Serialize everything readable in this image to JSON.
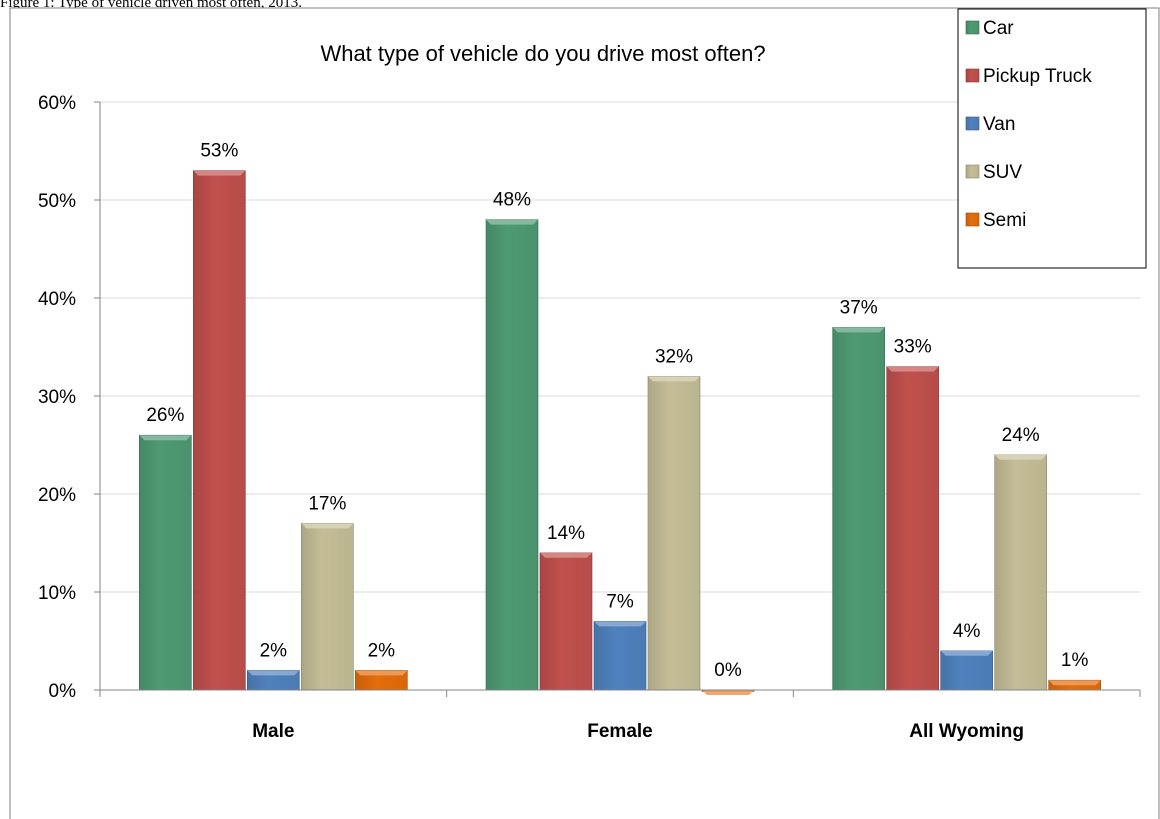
{
  "caption": "Figure 1: Type of vehicle driven most often, 2013.",
  "chart_data": {
    "type": "bar",
    "title": "What type of vehicle do you drive most often?",
    "categories": [
      "Male",
      "Female",
      "All Wyoming"
    ],
    "series": [
      {
        "name": "Car",
        "color": "#4e9a73",
        "values": [
          26,
          48,
          37
        ],
        "labels": [
          "26%",
          "48%",
          "37%"
        ]
      },
      {
        "name": "Pickup Truck",
        "color": "#c0504d",
        "values": [
          53,
          14,
          33
        ],
        "labels": [
          "53%",
          "14%",
          "33%"
        ]
      },
      {
        "name": "Van",
        "color": "#4f81bd",
        "values": [
          2,
          7,
          4
        ],
        "labels": [
          "2%",
          "7%",
          "4%"
        ]
      },
      {
        "name": "SUV",
        "color": "#c4bd97",
        "values": [
          17,
          32,
          24
        ],
        "labels": [
          "17%",
          "32%",
          "24%"
        ]
      },
      {
        "name": "Semi",
        "color": "#e46c0a",
        "values": [
          2,
          0,
          1
        ],
        "labels": [
          "2%",
          "0%",
          "1%"
        ]
      }
    ],
    "yticks": [
      "0%",
      "10%",
      "20%",
      "30%",
      "40%",
      "50%",
      "60%"
    ],
    "ylim": [
      0,
      60
    ],
    "grid": true,
    "legend_position": "top-right"
  }
}
